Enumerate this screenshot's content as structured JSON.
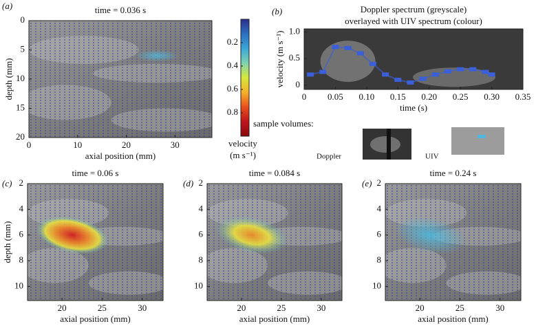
{
  "chart_data": [
    {
      "type": "image",
      "panel_label": "(a)",
      "title": "time = 0.036 s",
      "xlabel": "axial position (mm)",
      "ylabel": "depth (mm)",
      "xlim": [
        0,
        37.6
      ],
      "xticks": [
        0,
        10,
        20,
        30
      ],
      "ylim": [
        0,
        20
      ],
      "yticks": [
        0,
        5,
        10,
        15,
        20
      ],
      "yaxis_inverted": true
    },
    {
      "type": "colorbar",
      "label": [
        "velocity",
        "(m s⁻¹)"
      ],
      "ylim": [
        0,
        1
      ],
      "yticks": [
        0.2,
        0.4,
        0.6,
        0.8
      ],
      "yaxis_inverted": true,
      "colormap": [
        "#2b2f8f",
        "#2c6fc0",
        "#3ba7d8",
        "#7fd3b0",
        "#d8e83a",
        "#f5b02a",
        "#e8501c",
        "#c0141c",
        "#8b0a0a"
      ]
    },
    {
      "type": "line",
      "panel_label": "(b)",
      "title": [
        "Doppler spectrum (greyscale)",
        "overlayed with UIV spectrum (colour)"
      ],
      "xlabel": "time (s)",
      "ylabel": "velocity (m s⁻¹)",
      "color": "#3a5fd8",
      "x": [
        0.01,
        0.03,
        0.05,
        0.07,
        0.09,
        0.11,
        0.13,
        0.15,
        0.17,
        0.19,
        0.21,
        0.23,
        0.25,
        0.27,
        0.29,
        0.3
      ],
      "values": [
        0.2,
        0.25,
        0.72,
        0.7,
        0.6,
        0.4,
        0.2,
        0.1,
        0.05,
        0.12,
        0.2,
        0.26,
        0.3,
        0.3,
        0.25,
        0.2
      ],
      "xlim": [
        0,
        0.35
      ],
      "xticks": [
        0,
        0.05,
        {
          "value": 0.1,
          "label": "0.10"
        },
        0.15,
        {
          "value": 0.2,
          "label": "0.20"
        },
        0.25,
        {
          "value": 0.3,
          "label": "0.30"
        },
        0.35
      ],
      "ylim": [
        -0.08,
        1.06
      ],
      "yticks": [
        0,
        0.5,
        {
          "value": 1,
          "label": "1.0"
        }
      ],
      "sample_volumes": {
        "title": "sample volumes:",
        "labels": [
          "Doppler",
          "UIV"
        ]
      }
    },
    {
      "type": "image",
      "panel_label": "(c)",
      "title": "time = 0.06 s",
      "xlabel": "axial position (mm)",
      "ylabel": "depth (mm)",
      "xlim": [
        15.7,
        32.6
      ],
      "xticks": [
        20,
        25,
        30
      ],
      "ylim": [
        2,
        11.1
      ],
      "yticks": [
        2,
        4,
        6,
        8,
        10
      ],
      "yaxis_inverted": true
    },
    {
      "type": "image",
      "panel_label": "(d)",
      "title": "time = 0.084 s",
      "xlabel": "axial position (mm)",
      "xlim": [
        15.7,
        32.6
      ],
      "xticks": [
        20,
        25,
        30
      ],
      "ylim": [
        2,
        11.1
      ],
      "yticks": [
        2,
        4,
        6,
        8,
        10
      ],
      "yaxis_inverted": true
    },
    {
      "type": "image",
      "panel_label": "(e)",
      "title": "time = 0.24 s",
      "xlabel": "axial position (mm)",
      "xlim": [
        15.7,
        32.6
      ],
      "xticks": [
        20,
        25,
        30
      ],
      "ylim": [
        2,
        11.1
      ],
      "yticks": [
        2,
        4,
        6,
        8,
        10
      ],
      "yaxis_inverted": true
    }
  ]
}
